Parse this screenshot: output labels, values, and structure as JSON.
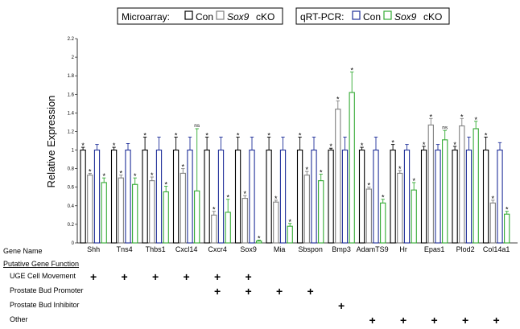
{
  "chart_data": {
    "type": "bar",
    "ylabel": "Relative Expression",
    "ylim": [
      0,
      2.2
    ],
    "yticks": [
      "0",
      "0.2",
      "0.4",
      "0.6",
      "0.8",
      "1",
      "1.2",
      "1.4",
      "1.6",
      "1.8",
      "2",
      "2.2"
    ],
    "categories": [
      "Shh",
      "Tns4",
      "Thbs1",
      "Cxcl14",
      "Cxcr4",
      "Sox9",
      "Mia",
      "Sbspon",
      "Bmp3",
      "AdamTS9",
      "Hr",
      "Epas1",
      "Plod2",
      "Col14a1"
    ],
    "series": [
      {
        "name": "Microarray Con",
        "values": [
          1,
          1,
          1,
          1,
          1,
          1,
          1,
          1,
          1,
          1,
          1,
          1,
          1,
          1
        ],
        "errors": [
          0.03,
          0.03,
          0.14,
          0.14,
          0.14,
          0.14,
          0.14,
          0.14,
          0.02,
          0.03,
          0.06,
          0.04,
          0.04,
          0.14
        ]
      },
      {
        "name": "Microarray Sox9 cKO",
        "values": [
          0.73,
          0.7,
          0.67,
          0.75,
          0.3,
          0.48,
          0.44,
          0.73,
          1.44,
          0.58,
          0.75,
          1.27,
          1.26,
          0.43
        ],
        "errors": [
          0.02,
          0.03,
          0.04,
          0.05,
          0.04,
          0.03,
          0.02,
          0.04,
          0.09,
          0.02,
          0.03,
          0.07,
          0.08,
          0.03
        ]
      },
      {
        "name": "qRT-PCR Con",
        "values": [
          1,
          1,
          1,
          1,
          1,
          1,
          1,
          1,
          1,
          1,
          1,
          1,
          1,
          1
        ],
        "errors": [
          0.06,
          0.07,
          0.14,
          0.14,
          0.14,
          0.14,
          0.14,
          0.14,
          0.14,
          0.14,
          0.06,
          0.06,
          0.14,
          0.08
        ]
      },
      {
        "name": "qRT-PCR Sox9 cKO",
        "values": [
          0.65,
          0.63,
          0.55,
          0.56,
          0.33,
          0.02,
          0.18,
          0.67,
          1.62,
          0.43,
          0.57,
          1.11,
          1.23,
          0.31
        ],
        "errors": [
          0.05,
          0.07,
          0.06,
          0.67,
          0.14,
          0.01,
          0.03,
          0.07,
          0.22,
          0.04,
          0.08,
          0.1,
          0.08,
          0.03
        ]
      }
    ],
    "annotations": [
      [
        "*",
        "*",
        "",
        "*"
      ],
      [
        "*",
        "*",
        "",
        "*"
      ],
      [
        "*",
        "*",
        "",
        "*"
      ],
      [
        "*",
        "*",
        "",
        "ns"
      ],
      [
        "*",
        "*",
        "",
        "*"
      ],
      [
        "*",
        "*",
        "",
        "*"
      ],
      [
        "*",
        "*",
        "",
        "*"
      ],
      [
        "*",
        "*",
        "",
        "*"
      ],
      [
        "*",
        "*",
        "",
        "*"
      ],
      [
        "*",
        "*",
        "",
        "*"
      ],
      [
        "*",
        "*",
        "",
        "*"
      ],
      [
        "*",
        "*",
        "",
        "ns"
      ],
      [
        "*",
        "*",
        "",
        "*"
      ],
      [
        "*",
        "*",
        "",
        "*"
      ]
    ],
    "legend": {
      "placement": "top",
      "microarray_label": "Microarray:",
      "qrtpcr_label": "qRT-PCR:",
      "con_label": "Con",
      "cko_label": "Sox9",
      "cko_suffix": "cKO",
      "colors": [
        "#000000",
        "#808080",
        "#1f2f99",
        "#33aa33"
      ]
    },
    "function_table": {
      "gene_name_label": "Gene Name",
      "header": "Putative Gene Function",
      "mark": "+",
      "rows": [
        {
          "label": "UGE Cell Movement",
          "marks": [
            1,
            1,
            1,
            1,
            1,
            1,
            0,
            0,
            0,
            0,
            0,
            0,
            0,
            0
          ]
        },
        {
          "label": "Prostate Bud Promoter",
          "marks": [
            0,
            0,
            0,
            0,
            1,
            1,
            1,
            1,
            0,
            0,
            0,
            0,
            0,
            0
          ]
        },
        {
          "label": "Prostate Bud Inhibitor",
          "marks": [
            0,
            0,
            0,
            0,
            0,
            0,
            0,
            0,
            1,
            0,
            0,
            0,
            0,
            0
          ]
        },
        {
          "label": "Other",
          "marks": [
            0,
            0,
            0,
            0,
            0,
            0,
            0,
            0,
            0,
            1,
            1,
            1,
            1,
            1
          ]
        }
      ]
    }
  }
}
